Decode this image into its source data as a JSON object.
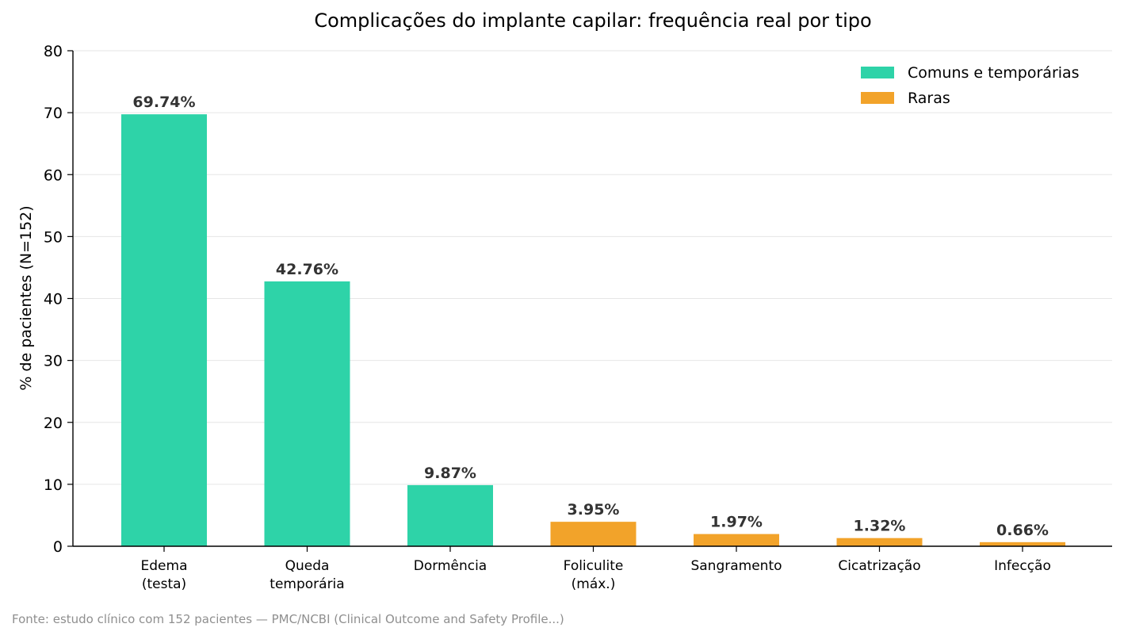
{
  "chart_data": {
    "type": "bar",
    "title": "Complicações do implante capilar: frequência real por tipo",
    "ylabel": "% de pacientes (N=152)",
    "xlabel": "",
    "ylim": [
      0,
      80
    ],
    "yticks": [
      "0",
      "10",
      "20",
      "30",
      "40",
      "50",
      "60",
      "70",
      "80"
    ],
    "grid": "horizontal",
    "legend_position": "top-right",
    "categories": [
      [
        "Edema",
        "(testa)"
      ],
      [
        "Queda",
        "temporária"
      ],
      [
        "Dormência"
      ],
      [
        "Foliculite",
        "(máx.)"
      ],
      [
        "Sangramento"
      ],
      [
        "Cicatrização"
      ],
      [
        "Infecção"
      ]
    ],
    "values": [
      69.74,
      42.76,
      9.87,
      3.95,
      1.97,
      1.32,
      0.66
    ],
    "value_labels": [
      "69.74%",
      "42.76%",
      "9.87%",
      "3.95%",
      "1.97%",
      "1.32%",
      "0.66%"
    ],
    "bar_group": [
      0,
      0,
      0,
      1,
      1,
      1,
      1
    ],
    "groups": [
      {
        "name": "Comuns e temporárias",
        "color": "#2ed3a8"
      },
      {
        "name": "Raras",
        "color": "#f2a32a"
      }
    ]
  },
  "source_note": "Fonte: estudo clínico com 152 pacientes — PMC/NCBI (Clinical Outcome and Safety Profile...)"
}
